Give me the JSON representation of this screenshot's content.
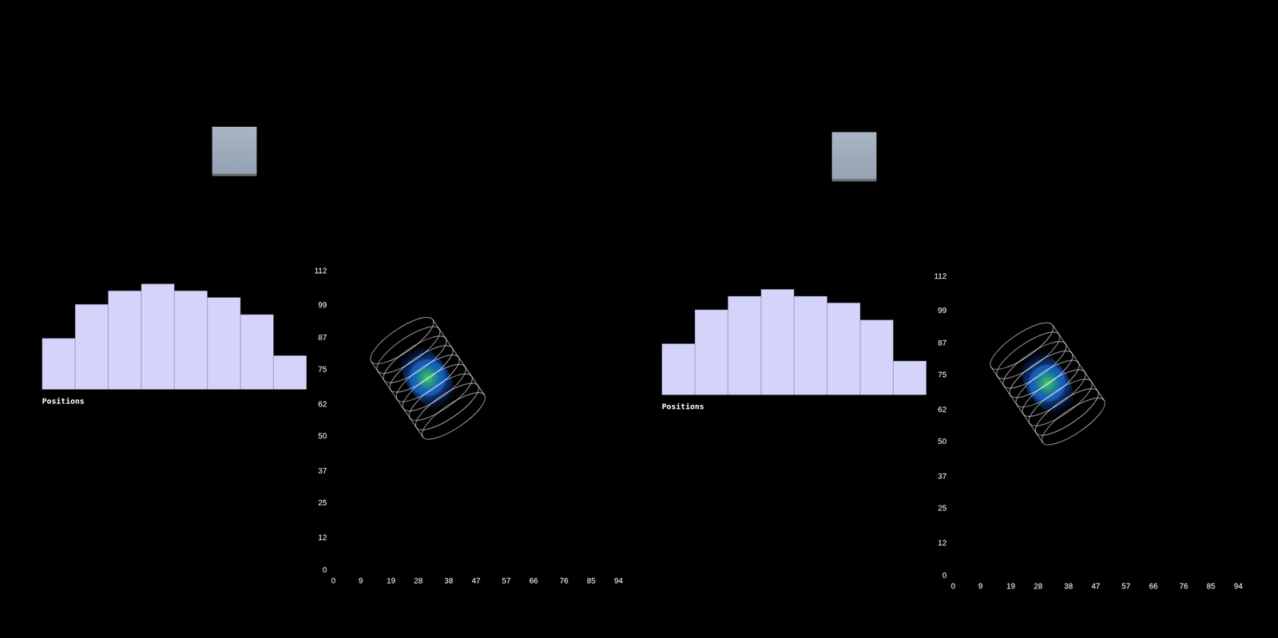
{
  "chart_data": [
    {
      "type": "bar",
      "xlabel": "Positions",
      "categories": [
        null,
        null,
        null,
        null,
        null,
        null,
        null,
        null
      ],
      "values": [
        15,
        25,
        29,
        31,
        29,
        27,
        22,
        10
      ],
      "color": "#d4d4fb",
      "ylim": [
        0,
        35
      ],
      "yticks": [],
      "tick_labels": false,
      "grid": false
    },
    {
      "type": "scatter",
      "x": [
        31
      ],
      "values": [
        72
      ],
      "color": "#1f3fd0",
      "marker": "circle",
      "xlim": [
        0,
        94
      ],
      "xticks": [
        0,
        9,
        19,
        28,
        38,
        47,
        57,
        66,
        76,
        85,
        94
      ],
      "ylim": [
        0,
        112
      ],
      "yticks": [
        0,
        12,
        25,
        37,
        50,
        62,
        75,
        87,
        99,
        112
      ],
      "grid": false
    },
    {
      "type": "bar",
      "xlabel": "Positions",
      "categories": [
        null,
        null,
        null,
        null,
        null,
        null,
        null,
        null
      ],
      "values": [
        15,
        25,
        29,
        31,
        29,
        27,
        22,
        10
      ],
      "color": "#d4d4fb",
      "ylim": [
        0,
        35
      ],
      "yticks": [],
      "tick_labels": false,
      "grid": false
    },
    {
      "type": "scatter",
      "x": [
        31
      ],
      "values": [
        72
      ],
      "color": "#1f3fd0",
      "marker": "circle",
      "xlim": [
        0,
        94
      ],
      "xticks": [
        0,
        9,
        19,
        28,
        38,
        47,
        57,
        66,
        76,
        85,
        94
      ],
      "ylim": [
        0,
        112
      ],
      "yticks": [
        0,
        12,
        25,
        37,
        50,
        62,
        75,
        87,
        99,
        112
      ],
      "grid": false
    }
  ]
}
